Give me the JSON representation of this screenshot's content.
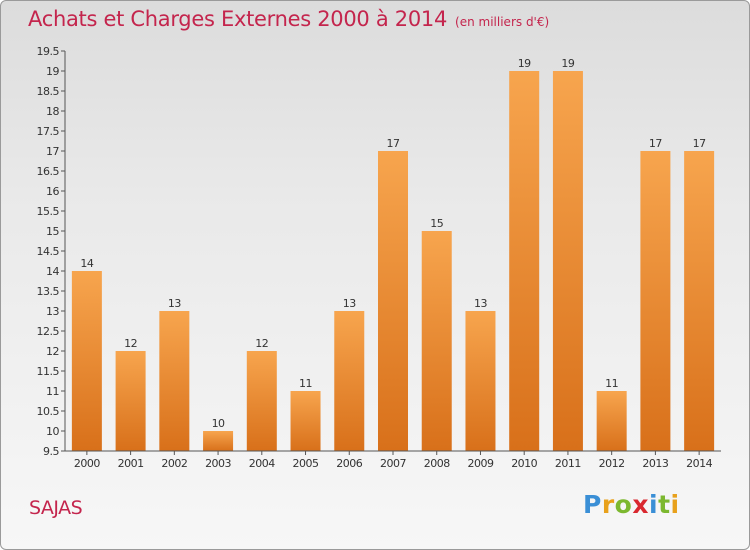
{
  "title": "Achats et Charges Externes 2000 à 2014",
  "subtitle": "(en milliers d'€)",
  "place": "SAJAS",
  "logo": {
    "letters": [
      "P",
      "r",
      "o",
      "x",
      "i",
      "t",
      "i"
    ],
    "colors": [
      "#3a8fd6",
      "#e8a11c",
      "#7cb82f",
      "#d9282f",
      "#3a8fd6",
      "#7cb82f",
      "#e8a11c"
    ]
  },
  "colors": {
    "bar_light": "#f7a54e",
    "bar_dark": "#d8701a",
    "title": "#c4254d"
  },
  "chart_data": {
    "type": "bar",
    "title": "Achats et Charges Externes 2000 à 2014",
    "xlabel": "",
    "ylabel": "",
    "categories": [
      "2000",
      "2001",
      "2002",
      "2003",
      "2004",
      "2005",
      "2006",
      "2007",
      "2008",
      "2009",
      "2010",
      "2011",
      "2012",
      "2013",
      "2014"
    ],
    "values": [
      14,
      12,
      13,
      10,
      12,
      11,
      13,
      17,
      15,
      13,
      19,
      19,
      11,
      17,
      17
    ],
    "labels": [
      "14",
      "12",
      "13",
      "10",
      "12",
      "11",
      "13",
      "17",
      "15",
      "13",
      "19",
      "19",
      "11",
      "17",
      "17"
    ],
    "ylim": [
      9.5,
      19.5
    ],
    "yticks": [
      "9.5",
      "10",
      "10.5",
      "11",
      "11.5",
      "12",
      "12.5",
      "13",
      "13.5",
      "14",
      "14.5",
      "15",
      "15.5",
      "16",
      "16.5",
      "17",
      "17.5",
      "18",
      "18.5",
      "19",
      "19.5"
    ],
    "grid": false
  }
}
